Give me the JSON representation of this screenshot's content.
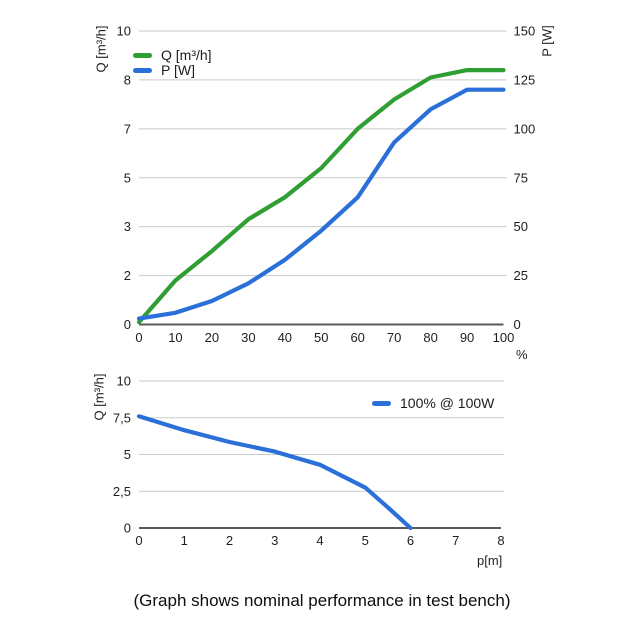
{
  "caption": "(Graph shows nominal performance in test bench)",
  "colors": {
    "q_green": "#2f9e33",
    "p_blue": "#2b6fd9",
    "gridline": "#c9c9c9",
    "axis": "#5a5a5a",
    "text": "#1e1e1e"
  },
  "chart_data": [
    {
      "type": "line",
      "title": "",
      "xlabel": "%",
      "x_tick_values": [
        0,
        10,
        20,
        30,
        40,
        50,
        60,
        70,
        80,
        90,
        100
      ],
      "x_tick_labels": [
        "0",
        "10",
        "20",
        "30",
        "40",
        "50",
        "60",
        "70",
        "80",
        "90",
        "100"
      ],
      "y_left": {
        "label": "Q [m³/h]",
        "tick_values": [
          0,
          2,
          3,
          5,
          7,
          8,
          10
        ],
        "tick_labels": [
          "0",
          "2",
          "3",
          "5",
          "7",
          "8",
          "10"
        ]
      },
      "y_right": {
        "label": "P [W]",
        "tick_values": [
          0,
          25,
          50,
          75,
          100,
          125,
          150
        ],
        "tick_labels": [
          "0",
          "25",
          "50",
          "75",
          "100",
          "125",
          "150"
        ]
      },
      "grid": true,
      "legend_position": "top-left",
      "series": [
        {
          "name": "Q [m³/h]",
          "axis": "left",
          "color": "#2f9e33",
          "x": [
            0,
            10,
            20,
            30,
            40,
            50,
            60,
            70,
            80,
            90,
            100
          ],
          "values": [
            0.1,
            1.8,
            2.5,
            3.3,
            4.2,
            5.4,
            7.0,
            7.6,
            8.1,
            8.4,
            8.4
          ]
        },
        {
          "name": "P [W]",
          "axis": "right",
          "color": "#2b6fd9",
          "x": [
            0,
            10,
            20,
            30,
            40,
            50,
            60,
            70,
            80,
            90,
            100
          ],
          "values": [
            3,
            6,
            12,
            21,
            33,
            48,
            65,
            93,
            110,
            120,
            120
          ]
        }
      ]
    },
    {
      "type": "line",
      "title": "",
      "xlabel": "p[m]",
      "x_tick_values": [
        0,
        1,
        2,
        3,
        4,
        5,
        6,
        7,
        8
      ],
      "x_tick_labels": [
        "0",
        "1",
        "2",
        "3",
        "4",
        "5",
        "6",
        "7",
        "8"
      ],
      "y_left": {
        "label": "Q [m³/h]",
        "tick_values": [
          0,
          2.5,
          5,
          7.5,
          10
        ],
        "tick_labels": [
          "0",
          "2,5",
          "5",
          "7,5",
          "10"
        ]
      },
      "grid": true,
      "legend_position": "top-right",
      "series": [
        {
          "name": "100% @ 100W",
          "axis": "left",
          "color": "#2b6fd9",
          "x": [
            0,
            1,
            2,
            3,
            4,
            5,
            5.5,
            6
          ],
          "values": [
            7.6,
            6.65,
            5.85,
            5.2,
            4.3,
            2.75,
            1.4,
            0
          ]
        }
      ]
    }
  ]
}
